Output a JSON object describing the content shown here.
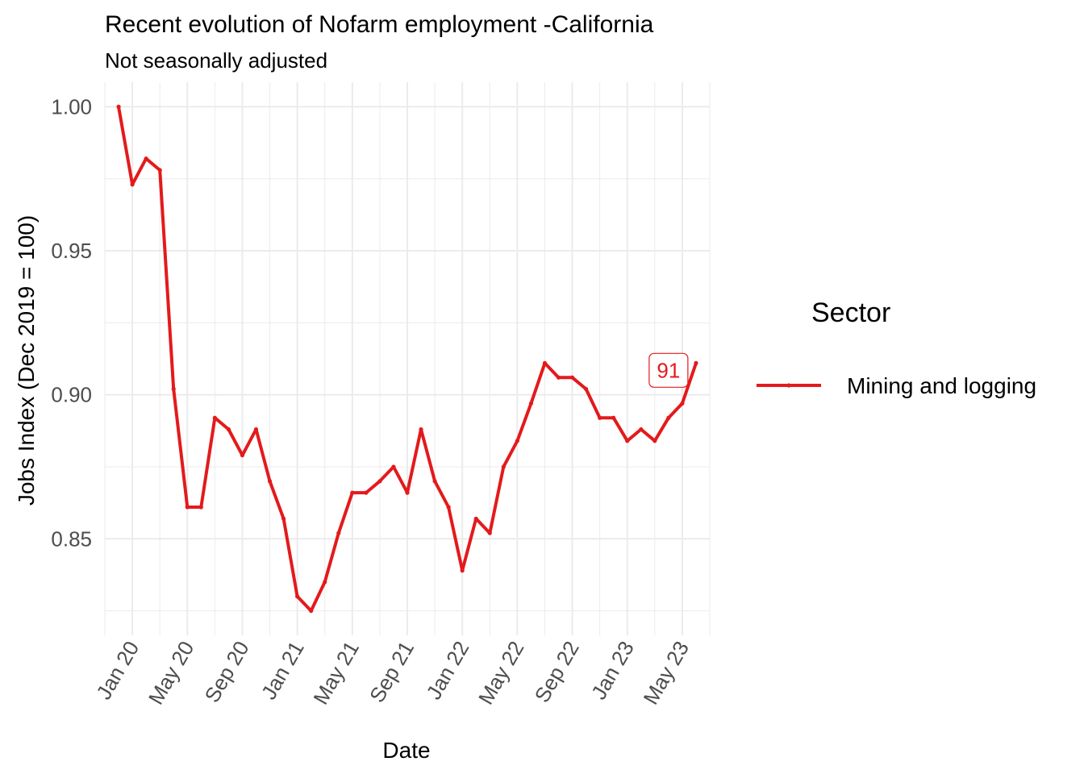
{
  "chart_data": {
    "type": "line",
    "title": "Recent evolution of Nofarm employment -California",
    "subtitle": "Not seasonally adjusted",
    "xlabel": "Date",
    "ylabel": "Jobs Index (Dec 2019 = 100)",
    "x": [
      "2019-12",
      "2020-01",
      "2020-02",
      "2020-03",
      "2020-04",
      "2020-05",
      "2020-06",
      "2020-07",
      "2020-08",
      "2020-09",
      "2020-10",
      "2020-11",
      "2020-12",
      "2021-01",
      "2021-02",
      "2021-03",
      "2021-04",
      "2021-05",
      "2021-06",
      "2021-07",
      "2021-08",
      "2021-09",
      "2021-10",
      "2021-11",
      "2021-12",
      "2022-01",
      "2022-02",
      "2022-03",
      "2022-04",
      "2022-05",
      "2022-06",
      "2022-07",
      "2022-08",
      "2022-09",
      "2022-10",
      "2022-11",
      "2022-12",
      "2023-01",
      "2023-02",
      "2023-03",
      "2023-04",
      "2023-05",
      "2023-06"
    ],
    "x_tick_labels": [
      "Jan 20",
      "May 20",
      "Sep 20",
      "Jan 21",
      "May 21",
      "Sep 21",
      "Jan 22",
      "May 22",
      "Sep 22",
      "Jan 23",
      "May 23"
    ],
    "x_tick_dates": [
      "2020-01",
      "2020-05",
      "2020-09",
      "2021-01",
      "2021-05",
      "2021-09",
      "2022-01",
      "2022-05",
      "2022-09",
      "2023-01",
      "2023-05"
    ],
    "xlim": [
      "2019-11",
      "2023-07"
    ],
    "y_ticks": [
      0.85,
      0.9,
      0.95,
      1.0
    ],
    "y_tick_labels": [
      "0.85",
      "0.90",
      "0.95",
      "1.00"
    ],
    "ylim": [
      0.8165,
      1.0085
    ],
    "grid": true,
    "legend_placement": "right",
    "legend_title": "Sector",
    "series": [
      {
        "name": "Mining and logging",
        "color": "#e31a1c",
        "values": [
          1.0,
          0.973,
          0.982,
          0.978,
          0.902,
          0.861,
          0.861,
          0.892,
          0.888,
          0.879,
          0.888,
          0.87,
          0.857,
          0.83,
          0.825,
          0.835,
          0.852,
          0.866,
          0.866,
          0.87,
          0.875,
          0.866,
          0.888,
          0.87,
          0.861,
          0.839,
          0.857,
          0.852,
          0.875,
          0.884,
          0.897,
          0.911,
          0.906,
          0.906,
          0.902,
          0.892,
          0.892,
          0.884,
          0.888,
          0.884,
          0.892,
          0.897,
          0.911
        ]
      }
    ],
    "annotations": [
      {
        "text": "91",
        "x": "2023-04",
        "y": 0.9085
      }
    ]
  }
}
